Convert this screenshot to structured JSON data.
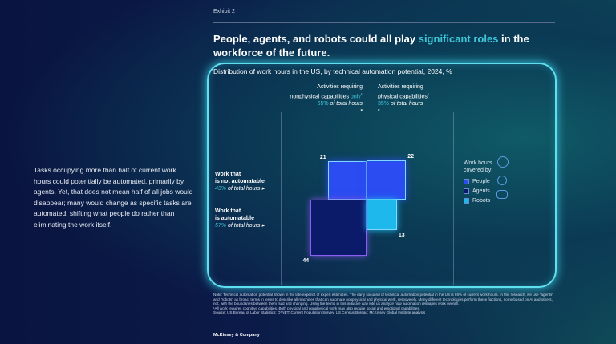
{
  "exhibit": "Exhibit 2",
  "title": {
    "pre": "People, agents, and robots could all play ",
    "highlight": "significant roles",
    "post": " in the workforce of the future."
  },
  "left_text": "Tasks occupying more than half of current work hours could potentially be automated, primarily by agents. Yet, that does not mean half of all jobs would disappear; many would change as specific tasks are automated, shifting what people do rather than eliminating the work itself.",
  "chart_data": {
    "type": "area-proportional quadrant",
    "title": "Distribution of work hours in the US, by technical automation potential, 2024, %",
    "columns": [
      {
        "line1": "Activities requiring",
        "line2": "nonphysical capabilities ",
        "line2_hl": "only",
        "sup": "1",
        "pct": "65%",
        "pct_text": " of total hours"
      },
      {
        "line1": "Activities requiring",
        "line2": "physical capabilities",
        "line2_hl": "",
        "sup": "1",
        "pct": "35%",
        "pct_text": " of total hours"
      }
    ],
    "rows": [
      {
        "line1": "Work that",
        "line2": "is not automatable",
        "pct": "43%",
        "pct_text": " of total hours ▸"
      },
      {
        "line1": "Work that",
        "line2": "is automatable",
        "pct": "57%",
        "pct_text": " of total hours ▸"
      }
    ],
    "cells": [
      {
        "row": 0,
        "col": 0,
        "series": "People",
        "value": 21,
        "label": "21"
      },
      {
        "row": 0,
        "col": 1,
        "series": "People",
        "value": 22,
        "label": "22"
      },
      {
        "row": 1,
        "col": 0,
        "series": "Agents",
        "value": 44,
        "label": "44"
      },
      {
        "row": 1,
        "col": 1,
        "series": "Robots",
        "value": 13,
        "label": "13"
      }
    ],
    "legend": {
      "title": "Work hours covered by:",
      "items": [
        {
          "name": "People",
          "color": "#2a4cf0"
        },
        {
          "name": "Agents",
          "color": "#0c1a6a"
        },
        {
          "name": "Robots",
          "color": "#1fb8ec"
        }
      ]
    }
  },
  "note": "Note: Technical automation potential shown in the late experiot of expert estimates. The early socunnd of technical automation potential in the US is 65% of current work hours. In this research, we use \"agents\" and \"robots\" as broact terms in terms to describe all machines that can automate nonphysical and physical werk, respoveiely. Many different technologies perform these fiactions, some based on AI and others, not, with the boundaries between them fluid and changing. Using the terms in this indusive way lote us analyze how automation reshapes work overall.",
  "footnote": "¹All work requires cognitive capabilities. Both physical and nonphysical work may also require social and emotional capabilities.",
  "source": "Source: US Bureau of Labor Statistics; O*NET; Current Population Survey, US Census Bureau; McKinsey Global Institute analysis",
  "brand": "McKinsey & Company"
}
